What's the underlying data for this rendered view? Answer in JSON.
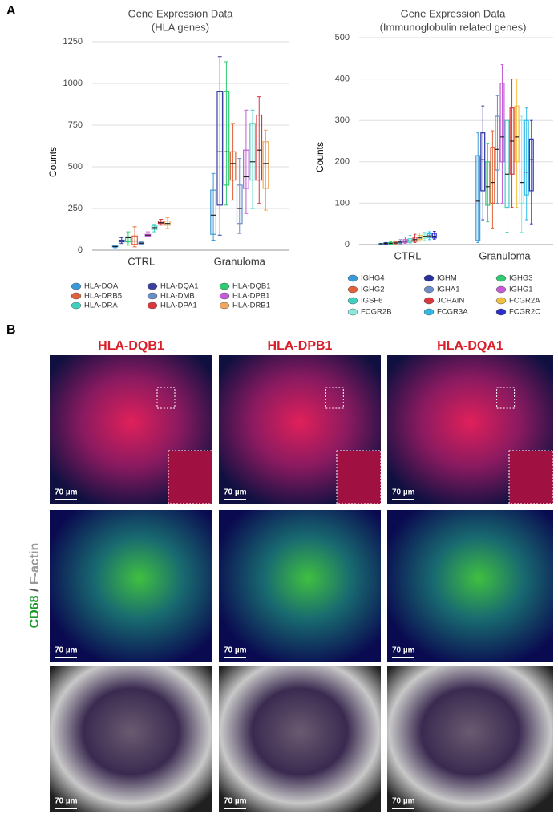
{
  "panel_labels": [
    "A",
    "B"
  ],
  "chart_data": [
    {
      "type": "box",
      "title": "Gene Expression Data",
      "subtitle": "(HLA genes)",
      "y_label": "Counts",
      "categories": [
        "CTRL",
        "Granuloma"
      ],
      "ylim": [
        0,
        1250
      ],
      "yticks": [
        0,
        250,
        500,
        750,
        1000,
        1250
      ],
      "grid": true,
      "series": [
        {
          "name": "HLA-DOA",
          "color": "#3a9ad9",
          "min": [
            15,
            60
          ],
          "q1": [
            20,
            95
          ],
          "median": [
            22,
            210
          ],
          "q3": [
            25,
            360
          ],
          "max": [
            30,
            460
          ]
        },
        {
          "name": "HLA-DQA1",
          "color": "#3b3f9e",
          "min": [
            40,
            90
          ],
          "q1": [
            50,
            270
          ],
          "median": [
            55,
            590
          ],
          "q3": [
            60,
            950
          ],
          "max": [
            75,
            1160
          ]
        },
        {
          "name": "HLA-DQB1",
          "color": "#2ecc71",
          "min": [
            30,
            270
          ],
          "q1": [
            50,
            390
          ],
          "median": [
            75,
            590
          ],
          "q3": [
            80,
            950
          ],
          "max": [
            110,
            1130
          ]
        },
        {
          "name": "HLA-DRB5",
          "color": "#e0623a",
          "min": [
            20,
            300
          ],
          "q1": [
            35,
            420
          ],
          "median": [
            55,
            520
          ],
          "q3": [
            85,
            590
          ],
          "max": [
            140,
            760
          ]
        },
        {
          "name": "HLA-DMB",
          "color": "#6a8fc8",
          "min": [
            35,
            100
          ],
          "q1": [
            40,
            160
          ],
          "median": [
            42,
            250
          ],
          "q3": [
            45,
            390
          ],
          "max": [
            50,
            550
          ]
        },
        {
          "name": "HLA-DPB1",
          "color": "#c45cd6",
          "min": [
            80,
            220
          ],
          "q1": [
            85,
            370
          ],
          "median": [
            90,
            440
          ],
          "q3": [
            95,
            600
          ],
          "max": [
            110,
            840
          ]
        },
        {
          "name": "HLA-DRA",
          "color": "#40d0c0",
          "min": [
            110,
            250
          ],
          "q1": [
            125,
            420
          ],
          "median": [
            135,
            530
          ],
          "q3": [
            145,
            760
          ],
          "max": [
            155,
            840
          ]
        },
        {
          "name": "HLA-DPA1",
          "color": "#d9363e",
          "min": [
            150,
            280
          ],
          "q1": [
            160,
            420
          ],
          "median": [
            165,
            600
          ],
          "q3": [
            175,
            810
          ],
          "max": [
            185,
            920
          ]
        },
        {
          "name": "HLA-DRB1",
          "color": "#f0a860",
          "min": [
            130,
            240
          ],
          "q1": [
            150,
            370
          ],
          "median": [
            160,
            520
          ],
          "q3": [
            175,
            650
          ],
          "max": [
            195,
            720
          ]
        }
      ]
    },
    {
      "type": "box",
      "title": "Gene Expression Data",
      "subtitle": "(Immunoglobulin related genes)",
      "y_label": "Counts",
      "categories": [
        "CTRL",
        "Granuloma"
      ],
      "ylim": [
        0,
        500
      ],
      "yticks": [
        0,
        100,
        200,
        300,
        400,
        500
      ],
      "grid": true,
      "series": [
        {
          "name": "IGHG4",
          "color": "#3a9ad9",
          "min": [
            1,
            5
          ],
          "q1": [
            1,
            10
          ],
          "median": [
            2,
            105
          ],
          "q3": [
            2,
            215
          ],
          "max": [
            3,
            270
          ]
        },
        {
          "name": "IGHM",
          "color": "#2b2f9e",
          "min": [
            1,
            60
          ],
          "q1": [
            2,
            130
          ],
          "median": [
            3,
            205
          ],
          "q3": [
            4,
            270
          ],
          "max": [
            5,
            335
          ]
        },
        {
          "name": "IGHG3",
          "color": "#2ecc71",
          "min": [
            1,
            55
          ],
          "q1": [
            2,
            95
          ],
          "median": [
            3,
            140
          ],
          "q3": [
            5,
            200
          ],
          "max": [
            7,
            245
          ]
        },
        {
          "name": "IGHG2",
          "color": "#e0623a",
          "min": [
            2,
            40
          ],
          "q1": [
            3,
            100
          ],
          "median": [
            4,
            150
          ],
          "q3": [
            6,
            235
          ],
          "max": [
            8,
            275
          ]
        },
        {
          "name": "IGHA1",
          "color": "#6a8fc8",
          "min": [
            2,
            100
          ],
          "q1": [
            4,
            180
          ],
          "median": [
            6,
            230
          ],
          "q3": [
            8,
            310
          ],
          "max": [
            12,
            360
          ]
        },
        {
          "name": "IGHG1",
          "color": "#c45cd6",
          "min": [
            3,
            100
          ],
          "q1": [
            5,
            200
          ],
          "median": [
            8,
            260
          ],
          "q3": [
            12,
            390
          ],
          "max": [
            18,
            435
          ]
        },
        {
          "name": "IGSF6",
          "color": "#40d0c0",
          "min": [
            4,
            30
          ],
          "q1": [
            6,
            90
          ],
          "median": [
            9,
            170
          ],
          "q3": [
            14,
            300
          ],
          "max": [
            22,
            420
          ]
        },
        {
          "name": "JCHAIN",
          "color": "#d9363e",
          "min": [
            5,
            90
          ],
          "q1": [
            8,
            170
          ],
          "median": [
            12,
            250
          ],
          "q3": [
            18,
            330
          ],
          "max": [
            25,
            400
          ]
        },
        {
          "name": "FCGR2A",
          "color": "#f0c040",
          "min": [
            8,
            90
          ],
          "q1": [
            12,
            200
          ],
          "median": [
            16,
            260
          ],
          "q3": [
            22,
            335
          ],
          "max": [
            28,
            400
          ]
        },
        {
          "name": "FCGR2B",
          "color": "#8fe8e0",
          "min": [
            10,
            30
          ],
          "q1": [
            15,
            100
          ],
          "median": [
            20,
            150
          ],
          "q3": [
            25,
            300
          ],
          "max": [
            30,
            310
          ]
        },
        {
          "name": "FCGR3A",
          "color": "#30b8e8",
          "min": [
            12,
            60
          ],
          "q1": [
            17,
            120
          ],
          "median": [
            21,
            175
          ],
          "q3": [
            26,
            300
          ],
          "max": [
            31,
            330
          ]
        },
        {
          "name": "FCGR2C",
          "color": "#2a2fc8",
          "min": [
            13,
            50
          ],
          "q1": [
            16,
            130
          ],
          "median": [
            20,
            205
          ],
          "q3": [
            27,
            255
          ],
          "max": [
            32,
            300
          ]
        }
      ]
    }
  ],
  "panels": {
    "columns": [
      "HLA-DQB1",
      "HLA-DPB1",
      "HLA-DQA1"
    ],
    "row_label_marker": "CD68",
    "row_label_sep": " / ",
    "row_label_stain": "F-actin",
    "scale_bars": [
      "70 µm",
      "70 µm",
      "70 µm",
      "70 µm",
      "70 µm",
      "70 µm",
      "70 µm",
      "70 µm",
      "70 µm"
    ]
  }
}
